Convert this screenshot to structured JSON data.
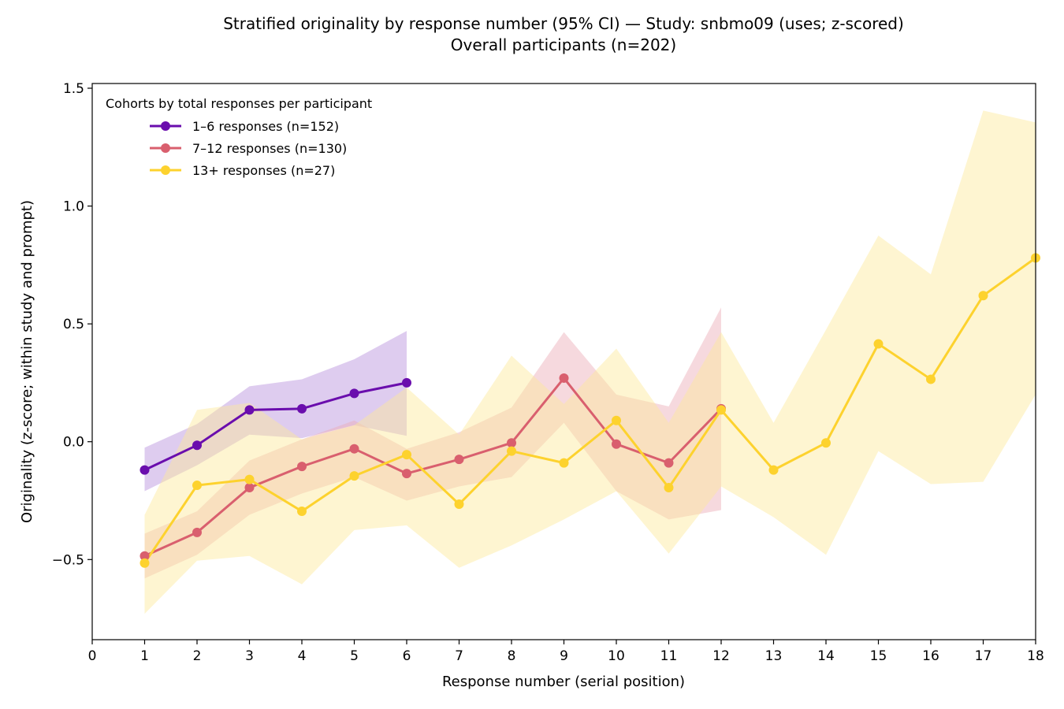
{
  "chart_data": {
    "type": "line",
    "title": "Stratified originality by response number (95% CI) — Study: snbmo09 (uses; z-scored)",
    "subtitle": "Overall participants (n=202)",
    "xlabel": "Response number (serial position)",
    "ylabel": "Originality (z-score; within study and prompt)",
    "xlim": [
      0,
      18
    ],
    "ylim": [
      -0.84,
      1.52
    ],
    "xticks": [
      0,
      1,
      2,
      3,
      4,
      5,
      6,
      7,
      8,
      9,
      10,
      11,
      12,
      13,
      14,
      15,
      16,
      17,
      18
    ],
    "yticks": [
      -0.5,
      0.0,
      0.5,
      1.0,
      1.5
    ],
    "ytick_labels": [
      "−0.5",
      "0.0",
      "0.5",
      "1.0",
      "1.5"
    ],
    "grid": false,
    "legend": {
      "title": "Cohorts by total responses per participant",
      "placement": "upper-left"
    },
    "series": [
      {
        "name": "1–6 responses (n=152)",
        "color": "#6a0dad",
        "band_color": "#b68fdc",
        "x": [
          1,
          2,
          3,
          4,
          5,
          6
        ],
        "y": [
          -0.12,
          -0.015,
          0.135,
          0.14,
          0.205,
          0.25
        ],
        "ci_low": [
          -0.21,
          -0.1,
          0.03,
          0.015,
          0.07,
          0.025
        ],
        "ci_high": [
          -0.025,
          0.075,
          0.235,
          0.265,
          0.35,
          0.47
        ]
      },
      {
        "name": "7–12 responses (n=130)",
        "color": "#d95f6e",
        "band_color": "#eaaab5",
        "x": [
          1,
          2,
          3,
          4,
          5,
          6,
          7,
          8,
          9,
          10,
          11,
          12
        ],
        "y": [
          -0.485,
          -0.385,
          -0.195,
          -0.105,
          -0.03,
          -0.135,
          -0.075,
          -0.005,
          0.27,
          -0.01,
          -0.09,
          0.14
        ],
        "ci_low": [
          -0.58,
          -0.48,
          -0.31,
          -0.22,
          -0.15,
          -0.25,
          -0.19,
          -0.15,
          0.08,
          -0.21,
          -0.33,
          -0.29
        ],
        "ci_high": [
          -0.39,
          -0.295,
          -0.08,
          0.01,
          0.09,
          -0.03,
          0.04,
          0.145,
          0.465,
          0.2,
          0.15,
          0.57
        ]
      },
      {
        "name": "13+ responses (n=27)",
        "color": "#fdd22e",
        "band_color": "#fde99a",
        "x": [
          1,
          2,
          3,
          4,
          5,
          6,
          7,
          8,
          9,
          10,
          11,
          12,
          13,
          14,
          15,
          16,
          17,
          18
        ],
        "y": [
          -0.515,
          -0.185,
          -0.16,
          -0.295,
          -0.145,
          -0.055,
          -0.265,
          -0.04,
          -0.09,
          0.09,
          -0.195,
          0.135,
          -0.12,
          -0.005,
          0.415,
          0.265,
          0.62,
          0.78
        ],
        "ci_low": [
          -0.73,
          -0.505,
          -0.485,
          -0.605,
          -0.375,
          -0.355,
          -0.535,
          -0.44,
          -0.33,
          -0.21,
          -0.475,
          -0.19,
          -0.32,
          -0.48,
          -0.04,
          -0.18,
          -0.17,
          0.2
        ],
        "ci_high": [
          -0.31,
          0.135,
          0.165,
          0.01,
          0.07,
          0.23,
          0.03,
          0.365,
          0.16,
          0.395,
          0.08,
          0.465,
          0.08,
          0.475,
          0.875,
          0.71,
          1.405,
          1.355
        ]
      }
    ]
  }
}
